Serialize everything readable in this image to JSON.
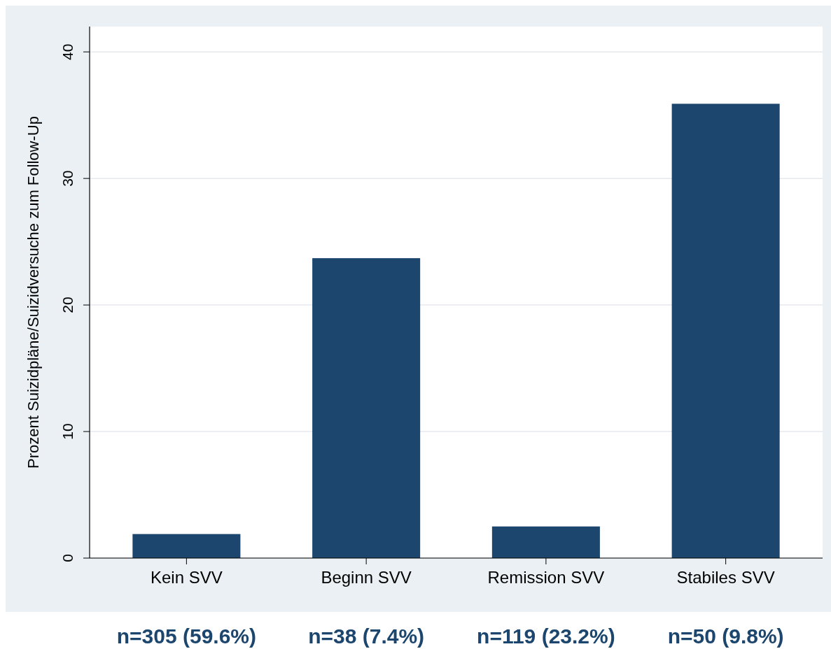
{
  "chart_data": {
    "type": "bar",
    "ylabel": "Prozent Suizidpläne/Suizidversuche zum Follow-Up",
    "categories": [
      "Kein SVV",
      "Beginn SVV",
      "Remission SVV",
      "Stabiles SVV"
    ],
    "values": [
      1.9,
      23.7,
      2.5,
      35.9
    ],
    "color": "#1c466d",
    "ylim": [
      0,
      42
    ],
    "yticks": [
      0,
      10,
      20,
      30,
      40
    ],
    "grid": "y",
    "annotations": [
      "n=305 (59.6%)",
      "n=38 (7.4%)",
      "n=119 (23.2%)",
      "n=50 (9.8%)"
    ]
  }
}
